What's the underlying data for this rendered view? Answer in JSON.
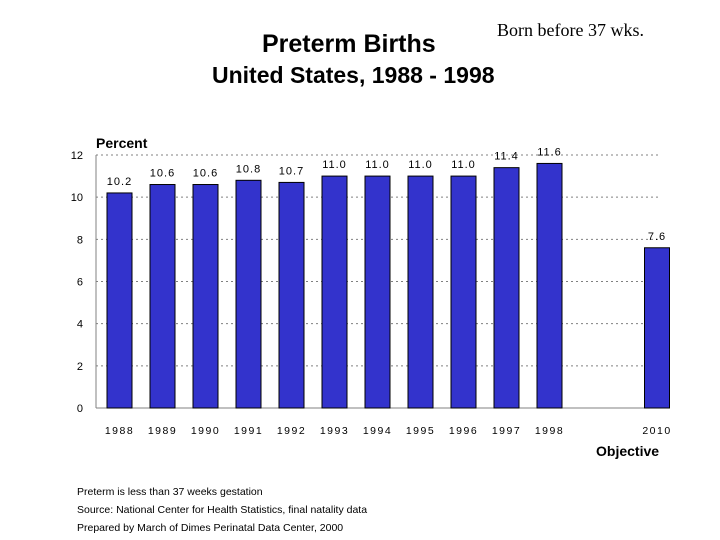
{
  "slide": {
    "title": "Preterm Births",
    "subtitle": "United States, 1988 - 1998",
    "note": "Born before 37 wks."
  },
  "chart_data": {
    "type": "bar",
    "ylabel": "Percent",
    "xlabel_secondary": "Objective",
    "ylim": [
      0,
      12
    ],
    "yticks": [
      0,
      2,
      4,
      6,
      8,
      10,
      12
    ],
    "grid": true,
    "categories": [
      "1988",
      "1989",
      "1990",
      "1991",
      "1992",
      "1993",
      "1994",
      "1995",
      "1996",
      "1997",
      "1998",
      "2010"
    ],
    "values": [
      10.2,
      10.6,
      10.6,
      10.8,
      10.7,
      11.0,
      11.0,
      11.0,
      11.0,
      11.4,
      11.6,
      7.6
    ],
    "value_labels": [
      "10.2",
      "10.6",
      "10.6",
      "10.8",
      "10.7",
      "11.0",
      "11.0",
      "11.0",
      "11.0",
      "11.4",
      "11.6",
      "7.6"
    ],
    "colors": {
      "bar": "#3333cc",
      "bar_edge": "#000000",
      "grid": "#808080"
    }
  },
  "footnotes": [
    "Preterm is less than 37 weeks gestation",
    "Source: National Center for Health Statistics, final natality data",
    "Prepared by March of Dimes Perinatal Data Center, 2000"
  ]
}
